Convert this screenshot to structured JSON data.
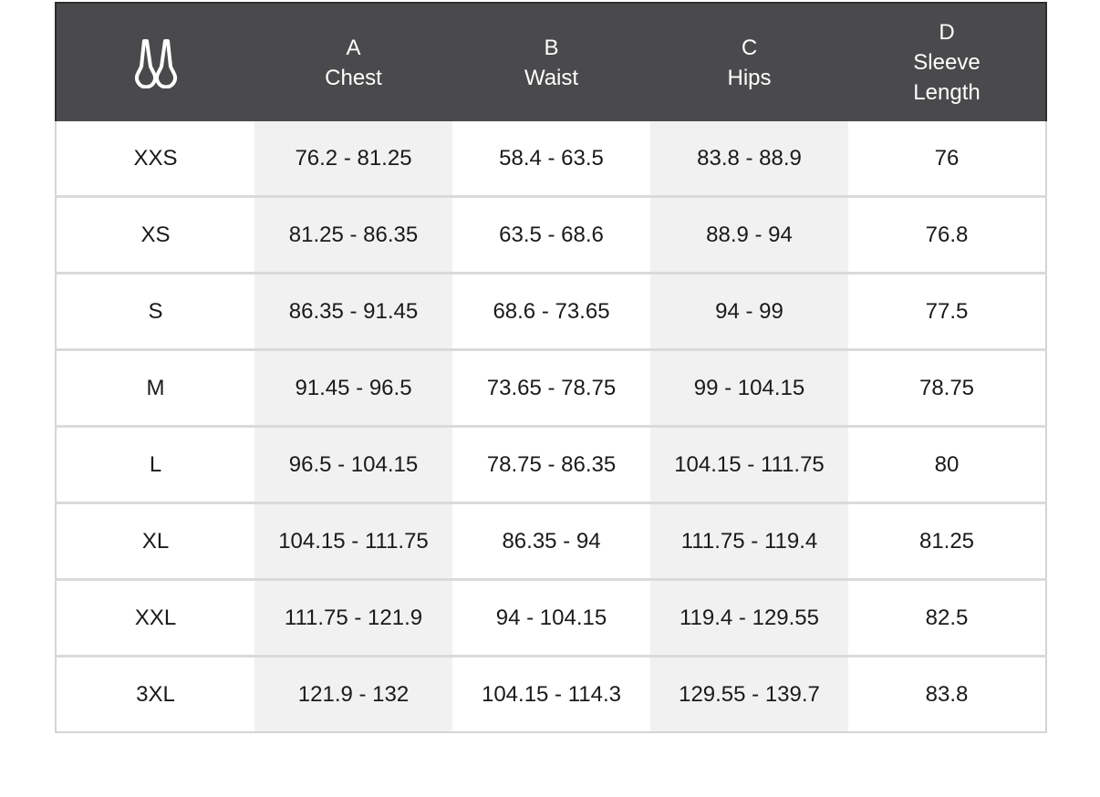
{
  "brand_logo": {
    "icon": "moose-knuckles-logo-icon"
  },
  "colors": {
    "header_bg": "#4a4a4c",
    "header_text": "#ffffff",
    "shaded_column": "#f1f1f1",
    "row_divider": "#dadada"
  },
  "columns": [
    {
      "letter": "A",
      "name": "Chest"
    },
    {
      "letter": "B",
      "name": "Waist"
    },
    {
      "letter": "C",
      "name": "Hips"
    },
    {
      "letter": "D",
      "name": "Sleeve Length"
    }
  ],
  "rows": [
    {
      "size": "XXS",
      "chest": "76.2 - 81.25",
      "waist": "58.4 - 63.5",
      "hips": "83.8 - 88.9",
      "sleeve": "76"
    },
    {
      "size": "XS",
      "chest": "81.25 - 86.35",
      "waist": "63.5 - 68.6",
      "hips": "88.9 - 94",
      "sleeve": "76.8"
    },
    {
      "size": "S",
      "chest": "86.35 - 91.45",
      "waist": "68.6 - 73.65",
      "hips": "94 - 99",
      "sleeve": "77.5"
    },
    {
      "size": "M",
      "chest": "91.45 - 96.5",
      "waist": "73.65 - 78.75",
      "hips": "99 - 104.15",
      "sleeve": "78.75"
    },
    {
      "size": "L",
      "chest": "96.5 - 104.15",
      "waist": "78.75 - 86.35",
      "hips": "104.15 - 111.75",
      "sleeve": "80"
    },
    {
      "size": "XL",
      "chest": "104.15 - 111.75",
      "waist": "86.35 - 94",
      "hips": "111.75 - 119.4",
      "sleeve": "81.25"
    },
    {
      "size": "XXL",
      "chest": "111.75 - 121.9",
      "waist": "94 - 104.15",
      "hips": "119.4 - 129.55",
      "sleeve": "82.5"
    },
    {
      "size": "3XL",
      "chest": "121.9 - 132",
      "waist": "104.15 - 114.3",
      "hips": "129.55 - 139.7",
      "sleeve": "83.8"
    }
  ]
}
